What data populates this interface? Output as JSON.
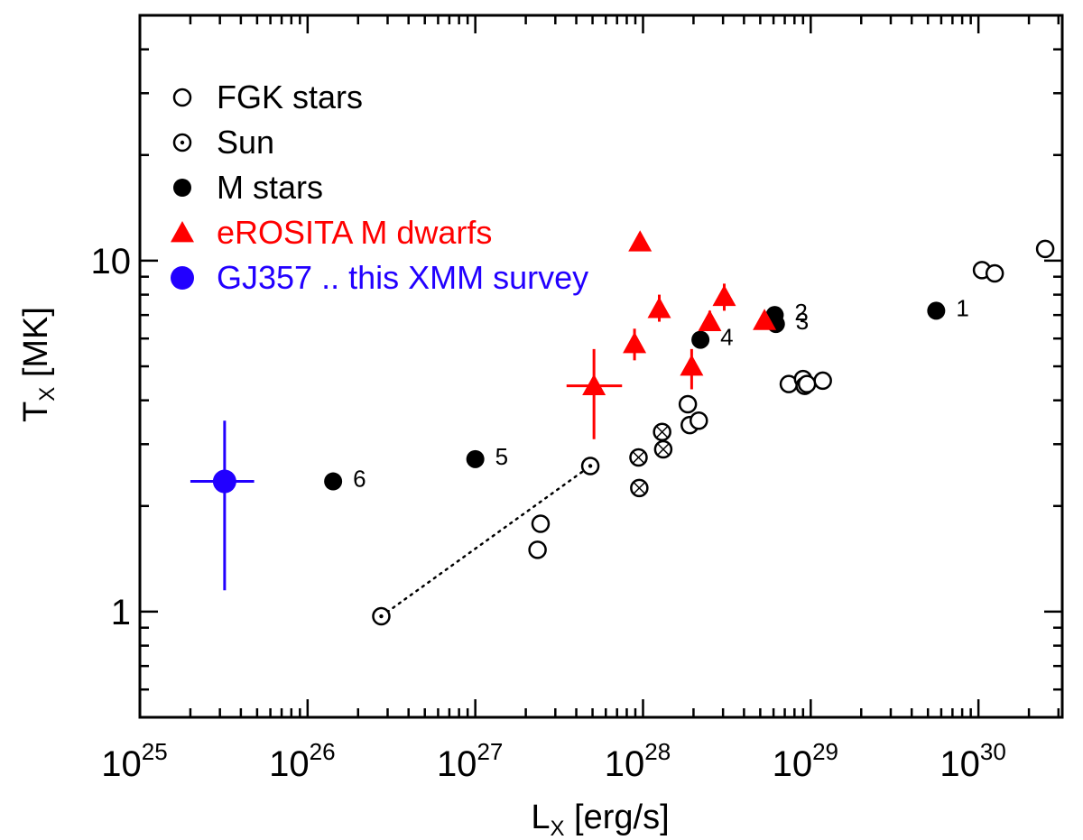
{
  "chart_data": {
    "type": "scatter",
    "title": "",
    "xlabel": "L",
    "xlabel_sub": "X",
    "xlabel_unit": " [erg/s]",
    "ylabel": "T",
    "ylabel_sub": "X",
    "ylabel_unit": " [MK]",
    "xscale": "log",
    "yscale": "log",
    "xlim": [
      1e+25,
      3.16e+30
    ],
    "ylim": [
      0.5,
      50
    ],
    "x_ticks": [
      {
        "value": 1e+25,
        "label": "25"
      },
      {
        "value": 1e+26,
        "label": "26"
      },
      {
        "value": 1e+27,
        "label": "27"
      },
      {
        "value": 1e+28,
        "label": "28"
      },
      {
        "value": 1e+29,
        "label": "29"
      },
      {
        "value": 1e+30,
        "label": "30"
      }
    ],
    "x_tick_base": "10",
    "y_ticks": [
      {
        "value": 1,
        "label": "1"
      },
      {
        "value": 10,
        "label": "10"
      }
    ],
    "legend_position": "top-left",
    "legend": [
      {
        "label": "FGK stars",
        "marker": "open-circle",
        "color": "#000000"
      },
      {
        "label": "Sun",
        "marker": "dotted-circle",
        "color": "#000000"
      },
      {
        "label": "M stars",
        "marker": "filled-circle",
        "color": "#000000"
      },
      {
        "label": "eROSITA M dwarfs",
        "marker": "filled-triangle",
        "color": "#ff0000"
      },
      {
        "label": "GJ357 .. this XMM survey",
        "marker": "big-filled-circle",
        "color": "#2200ff"
      }
    ],
    "series": [
      {
        "name": "FGK stars",
        "marker": "open-circle",
        "points": [
          {
            "x": 2.35e+27,
            "y": 1.5
          },
          {
            "x": 2.45e+27,
            "y": 1.78
          },
          {
            "x": 1.85e+28,
            "y": 3.9
          },
          {
            "x": 1.9e+28,
            "y": 3.4
          },
          {
            "x": 2.15e+28,
            "y": 3.5
          },
          {
            "x": 7.4e+28,
            "y": 4.45
          },
          {
            "x": 9e+28,
            "y": 4.6
          },
          {
            "x": 9.2e+28,
            "y": 4.4
          },
          {
            "x": 9.5e+28,
            "y": 4.45
          },
          {
            "x": 1.18e+29,
            "y": 4.55
          },
          {
            "x": 1.05e+30,
            "y": 9.4
          },
          {
            "x": 1.25e+30,
            "y": 9.2
          },
          {
            "x": 2.5e+30,
            "y": 10.8
          }
        ]
      },
      {
        "name": "FGK stars (crossed)",
        "marker": "crossed-circle",
        "points": [
          {
            "x": 9.4e+27,
            "y": 2.75
          },
          {
            "x": 9.5e+27,
            "y": 2.25
          },
          {
            "x": 1.3e+28,
            "y": 3.25
          },
          {
            "x": 1.32e+28,
            "y": 2.9
          }
        ]
      },
      {
        "name": "Sun",
        "marker": "dotted-circle",
        "points": [
          {
            "x": 2.75e+26,
            "y": 0.97
          },
          {
            "x": 4.85e+27,
            "y": 2.6
          }
        ],
        "connect": "dotted"
      },
      {
        "name": "M stars",
        "marker": "filled-circle",
        "points": [
          {
            "x": 1.42e+26,
            "y": 2.35,
            "label": "6"
          },
          {
            "x": 1e+27,
            "y": 2.72,
            "label": "5"
          },
          {
            "x": 2.2e+28,
            "y": 5.95,
            "label": "4"
          },
          {
            "x": 6.2e+28,
            "y": 6.6,
            "label": "3"
          },
          {
            "x": 6.1e+28,
            "y": 7.0,
            "label": "2"
          },
          {
            "x": 5.6e+29,
            "y": 7.2,
            "label": "1"
          }
        ]
      },
      {
        "name": "eROSITA M dwarfs",
        "marker": "filled-triangle",
        "points": [
          {
            "x": 5.1e+27,
            "y": 4.4,
            "x_err": [
              3.5e+27,
              7.5e+27
            ],
            "y_err": [
              3.1,
              5.6
            ]
          },
          {
            "x": 8.9e+27,
            "y": 5.8,
            "y_err": [
              5.2,
              6.4
            ]
          },
          {
            "x": 9.6e+27,
            "y": 11.3,
            "y_err": [
              10.9,
              11.7
            ]
          },
          {
            "x": 1.25e+28,
            "y": 7.3,
            "y_err": [
              6.7,
              8.0
            ]
          },
          {
            "x": 1.95e+28,
            "y": 5.0,
            "y_err": [
              4.3,
              5.6
            ]
          },
          {
            "x": 2.5e+28,
            "y": 6.7,
            "y_err": [
              6.3,
              7.2
            ]
          },
          {
            "x": 3.05e+28,
            "y": 7.9,
            "y_err": [
              7.2,
              8.6
            ]
          },
          {
            "x": 5.3e+28,
            "y": 6.75,
            "y_err": [
              6.4,
              7.0
            ]
          }
        ]
      },
      {
        "name": "GJ357 .. this XMM survey",
        "marker": "big-filled-circle",
        "points": [
          {
            "x": 3.2e+25,
            "y": 2.35,
            "x_err": [
              2e+25,
              4.8e+25
            ],
            "y_err": [
              1.15,
              3.5
            ]
          }
        ]
      }
    ]
  }
}
